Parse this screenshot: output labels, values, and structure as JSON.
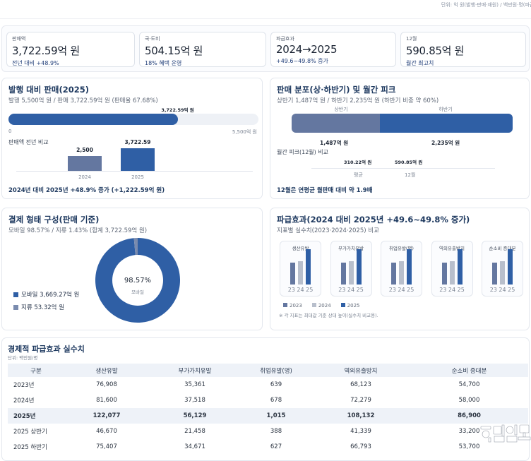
{
  "unit_note": "단위: 억 원(발행·판매·재원) / 백만원·명(파급효과)",
  "colors": {
    "primary": "#2f5fa5",
    "secondary": "#6477a0",
    "light": "#b8bfcc",
    "title": "#1f3a60"
  },
  "kpis": [
    {
      "label": "판매액",
      "value": "3,722.59억 원",
      "sub": "전년 대비 +48.9%"
    },
    {
      "label": "국·도비",
      "value": "504.15억 원",
      "sub": "18% 혜택 운영"
    },
    {
      "label": "파급효과",
      "value": "2024→2025",
      "sub": "+49.6~49.8% 증가"
    },
    {
      "label": "12월",
      "value": "590.85억 원",
      "sub": "월간 최고치"
    }
  ],
  "issue": {
    "title": "발행 대비 판매(2025)",
    "subtitle": "발행 5,500억 원 / 판매 3,722.59억 원 (판매율 67.68%)",
    "progress_percent": 67.68,
    "progress_label": "3,722.59억 원",
    "axis_min": "0",
    "axis_max": "5,500억 원",
    "compare_title": "판매액 전년 비교",
    "bars": [
      {
        "year": "2024",
        "value": 2500,
        "label": "2,500"
      },
      {
        "year": "2025",
        "value": 3722.59,
        "label": "3,722.59"
      }
    ],
    "note": "2024년 대비 2025년 +48.9% 증가 (+1,222.59억 원)"
  },
  "dist": {
    "title": "판매 분포(상·하반기) 및 월간 피크",
    "subtitle": "상반기 1,487억 원 / 하반기 2,235억 원 (하반기 비중 약 60%)",
    "halves": [
      {
        "name": "상반기",
        "value": 1487,
        "label": "1,487억 원"
      },
      {
        "name": "하반기",
        "value": 2235,
        "label": "2,235억 원"
      }
    ],
    "peak_title": "월간 피크(12월) 비교",
    "peak": [
      {
        "name": "평균",
        "label": "310.22억 원"
      },
      {
        "name": "12월",
        "label": "590.85억 원"
      }
    ],
    "note": "12월은 연평균 월판매 대비 약 1.9배"
  },
  "payment": {
    "title": "결제 형태 구성(판매 기준)",
    "subtitle": "모바일 98.57% / 지류 1.43% (합계 3,722.59억 원)",
    "center_value": "98.57%",
    "center_label": "모바일",
    "slices": [
      {
        "name": "모바일",
        "percent": 98.57,
        "legend": "모바일 3,669.27억 원"
      },
      {
        "name": "지류",
        "percent": 1.43,
        "legend": "지류 53.32억 원"
      }
    ]
  },
  "effect": {
    "title": "파급효과(2024 대비 2025년 +49.6~49.8% 증가)",
    "subtitle": "지표별 실수치(2023·2024·2025) 비교",
    "x_labels": "23 24 25",
    "legend": [
      "2023",
      "2024",
      "2025"
    ],
    "footnote": "※ 각 지표는 최대값 기준 상대 높이(실수치 비교용).",
    "metrics": [
      {
        "name": "생산유발",
        "values": [
          76908,
          81600,
          122077
        ]
      },
      {
        "name": "부가가치유발",
        "values": [
          35361,
          37518,
          56129
        ]
      },
      {
        "name": "취업유발(명)",
        "values": [
          639,
          678,
          1015
        ]
      },
      {
        "name": "역외유출방지",
        "values": [
          68123,
          72279,
          108132
        ]
      },
      {
        "name": "순소비 증대분",
        "values": [
          54700,
          58000,
          86900
        ]
      }
    ]
  },
  "table": {
    "title": "경제적 파급효과 실수치",
    "unit": "단위: 백만원/명",
    "headers": [
      "구분",
      "생산유발",
      "부가가치유발",
      "취업유발(명)",
      "역외유출방지",
      "순소비 증대분"
    ],
    "rows": [
      [
        "2023년",
        "76,908",
        "35,361",
        "639",
        "68,123",
        "54,700"
      ],
      [
        "2024년",
        "81,600",
        "37,518",
        "678",
        "72,279",
        "58,000"
      ],
      [
        "2025년",
        "122,077",
        "56,129",
        "1,015",
        "108,132",
        "86,900"
      ],
      [
        "2025 상반기",
        "46,670",
        "21,458",
        "388",
        "41,339",
        "33,200"
      ],
      [
        "2025 하반기",
        "75,407",
        "34,671",
        "627",
        "66,793",
        "53,700"
      ]
    ],
    "highlight_row": 2
  },
  "watermark": "한민일보"
}
